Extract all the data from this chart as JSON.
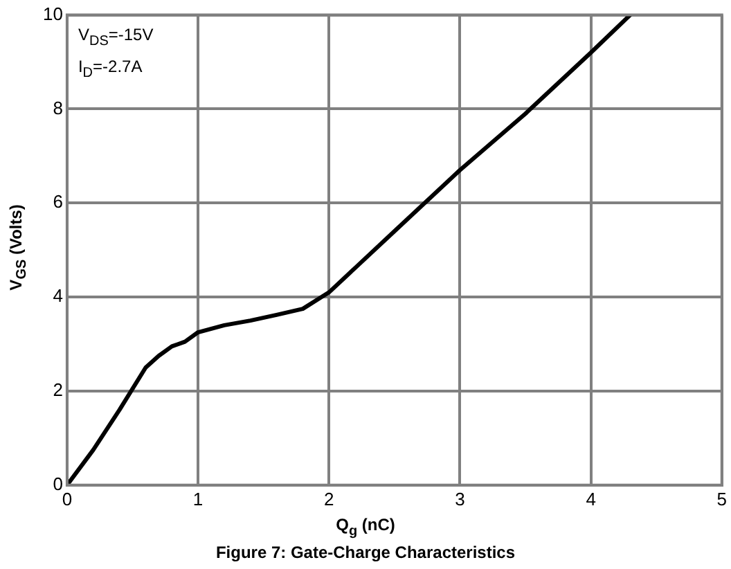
{
  "chart_data": {
    "type": "line",
    "title": "Figure 7: Gate-Charge Characteristics",
    "xlabel": "Q$_{g}$ (nC)",
    "ylabel": "V$_{GS}$ (Volts)",
    "annotations": [
      "V$_{DS}$=-15V",
      "I$_{D}$=-2.7A"
    ],
    "x": [
      0,
      0.2,
      0.4,
      0.6,
      0.7,
      0.8,
      0.9,
      1.0,
      1.2,
      1.4,
      1.6,
      1.8,
      2.0,
      2.5,
      3.0,
      3.5,
      4.0,
      4.3
    ],
    "series": [
      {
        "color": "#000000",
        "values": [
          0,
          0.75,
          1.6,
          2.5,
          2.75,
          2.95,
          3.05,
          3.25,
          3.4,
          3.5,
          3.62,
          3.75,
          4.1,
          5.4,
          6.7,
          7.9,
          9.2,
          10
        ]
      }
    ],
    "xlim": [
      0,
      5
    ],
    "xticks": [
      0,
      1,
      2,
      3,
      4,
      5
    ],
    "ylim": [
      0,
      10
    ],
    "yticks": [
      0,
      2,
      4,
      6,
      8,
      10
    ],
    "grid": true,
    "legend": false,
    "marker": "none",
    "line_style": "solid"
  }
}
